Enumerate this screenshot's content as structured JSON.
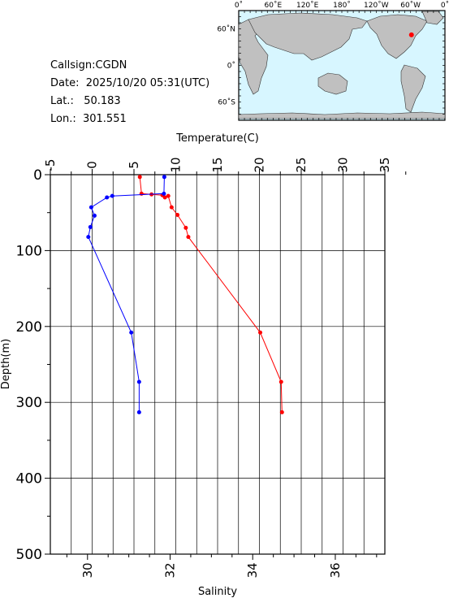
{
  "info": {
    "callsign": "Callsign:CGDN",
    "date": "Date:  2025/10/20 05:31(UTC)",
    "lat": "Lat.:   50.183",
    "lon": "Lon.:  301.551"
  },
  "map": {
    "lon_labels": [
      "0˚",
      "60˚E",
      "120˚E",
      "180˚",
      "120˚W",
      "60˚W",
      "0˚"
    ],
    "lat_labels": [
      "60˚N",
      "0˚",
      "60˚S"
    ],
    "ocean_color": "#d7f6ff",
    "land_color": "#c0c0c0",
    "marker_color": "#ff0000",
    "station": {
      "lon": 301.551,
      "lat": 50.183
    }
  },
  "chart_data": {
    "type": "line",
    "top_axis": {
      "label": "Temperature(C)",
      "range": [
        -5,
        35
      ],
      "ticks": [
        -5,
        0,
        5,
        10,
        15,
        20,
        25,
        30,
        35
      ]
    },
    "bottom_axis": {
      "label": "Salinity",
      "range": [
        29.1,
        37.2
      ],
      "ticks": [
        30,
        32,
        34,
        36
      ]
    },
    "y_axis": {
      "label": "Depth(m)",
      "range": [
        0,
        500
      ],
      "reversed": true,
      "ticks": [
        0,
        100,
        200,
        300,
        400,
        500
      ]
    },
    "grid": true,
    "series": [
      {
        "variable": "temperature",
        "color": "#ff0000",
        "points": [
          [
            5.7,
            3
          ],
          [
            5.9,
            25
          ],
          [
            7.1,
            26
          ],
          [
            8.4,
            27
          ],
          [
            8.7,
            30
          ],
          [
            9.1,
            28
          ],
          [
            9.5,
            43
          ],
          [
            10.2,
            53
          ],
          [
            11.2,
            70
          ],
          [
            11.5,
            82
          ],
          [
            20.1,
            208
          ],
          [
            22.6,
            273
          ],
          [
            22.7,
            313
          ]
        ]
      },
      {
        "variable": "salinity",
        "color": "#0000ff",
        "points": [
          [
            31.86,
            3
          ],
          [
            31.85,
            25
          ],
          [
            30.6,
            28
          ],
          [
            30.47,
            30
          ],
          [
            30.09,
            43
          ],
          [
            30.17,
            54
          ],
          [
            30.07,
            69
          ],
          [
            30.02,
            82
          ],
          [
            31.06,
            208
          ],
          [
            31.25,
            273
          ],
          [
            31.25,
            313
          ]
        ]
      }
    ]
  }
}
